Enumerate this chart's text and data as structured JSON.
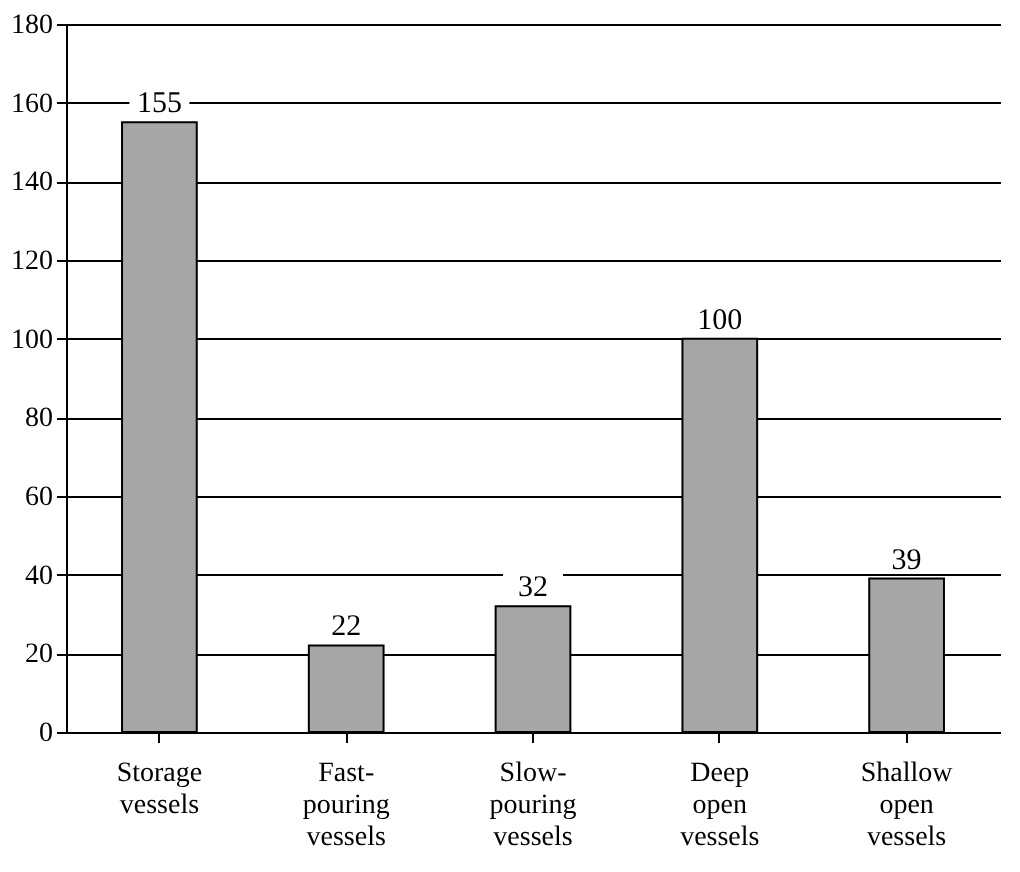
{
  "chart_data": {
    "type": "bar",
    "categories": [
      "Storage\nvessels",
      "Fast-\npouring\nvessels",
      "Slow-\npouring\nvessels",
      "Deep\nopen\nvessels",
      "Shallow\nopen\nvessels"
    ],
    "values": [
      155,
      22,
      32,
      100,
      39
    ],
    "color": "#a6a6a6",
    "ylim": [
      0,
      180
    ],
    "yticks": [
      0,
      20,
      40,
      60,
      80,
      100,
      120,
      140,
      160,
      180
    ],
    "grid": "y",
    "data_labels": true
  }
}
